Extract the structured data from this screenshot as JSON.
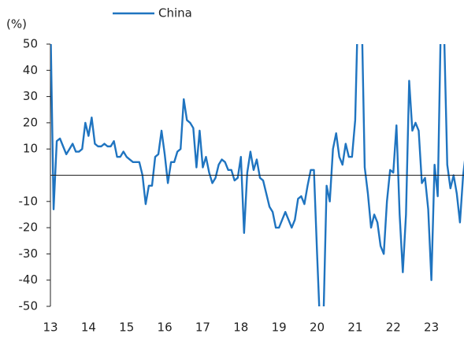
{
  "chart_data": {
    "type": "line",
    "y_unit": "(%)",
    "categories": [
      "13",
      null,
      null,
      null,
      null,
      null,
      null,
      null,
      null,
      null,
      null,
      null,
      "14",
      null,
      null,
      null,
      null,
      null,
      null,
      null,
      null,
      null,
      null,
      null,
      "15",
      null,
      null,
      null,
      null,
      null,
      null,
      null,
      null,
      null,
      null,
      null,
      "16",
      null,
      null,
      null,
      null,
      null,
      null,
      null,
      null,
      null,
      null,
      null,
      "17",
      null,
      null,
      null,
      null,
      null,
      null,
      null,
      null,
      null,
      null,
      null,
      "18",
      null,
      null,
      null,
      null,
      null,
      null,
      null,
      null,
      null,
      null,
      null,
      "19",
      null,
      null,
      null,
      null,
      null,
      null,
      null,
      null,
      null,
      null,
      null,
      "20",
      null,
      null,
      null,
      null,
      null,
      null,
      null,
      null,
      null,
      null,
      null,
      "21",
      null,
      null,
      null,
      null,
      null,
      null,
      null,
      null,
      null,
      null,
      null,
      "22",
      null,
      null,
      null,
      null,
      null,
      null,
      null,
      null,
      null,
      null,
      null,
      "23",
      null,
      null,
      null,
      null,
      null,
      null,
      null,
      null,
      null,
      null,
      null
    ],
    "series": [
      {
        "name": "China",
        "color": "#1f74c0",
        "values": [
          60,
          -13,
          13,
          14,
          11,
          8,
          10,
          12,
          9,
          9,
          10,
          20,
          15,
          22,
          12,
          11,
          11,
          12,
          11,
          11,
          13,
          7,
          7,
          9,
          7,
          6,
          5,
          5,
          5,
          0,
          -11,
          -4,
          -4,
          7,
          8,
          17,
          8,
          -3,
          5,
          5,
          9,
          10,
          29,
          21,
          20,
          18,
          3,
          17,
          3,
          7,
          1,
          -3,
          -1,
          4,
          6,
          5,
          2,
          2,
          -2,
          -1,
          7,
          -22,
          1,
          9,
          2,
          6,
          -1,
          -2,
          -7,
          -12,
          -14,
          -20,
          -20,
          -17,
          -14,
          -17,
          -20,
          -17,
          -9,
          -8,
          -11,
          -4,
          2,
          2,
          -30,
          -60,
          -55,
          -4,
          -10,
          10,
          16,
          7,
          4,
          12,
          7,
          7,
          21,
          70,
          65,
          3,
          -7,
          -20,
          -15,
          -18,
          -27,
          -30,
          -10,
          2,
          1,
          19,
          -15,
          -37,
          -15,
          36,
          17,
          20,
          17,
          -3,
          -1,
          -13,
          -40,
          4,
          -8,
          60,
          55,
          4,
          -5,
          0,
          -7,
          -18,
          0,
          10
        ]
      }
    ],
    "ylim": [
      -50,
      50
    ],
    "yticks": [
      -50,
      -40,
      -30,
      -20,
      -10,
      10,
      20,
      30,
      40,
      50
    ]
  }
}
